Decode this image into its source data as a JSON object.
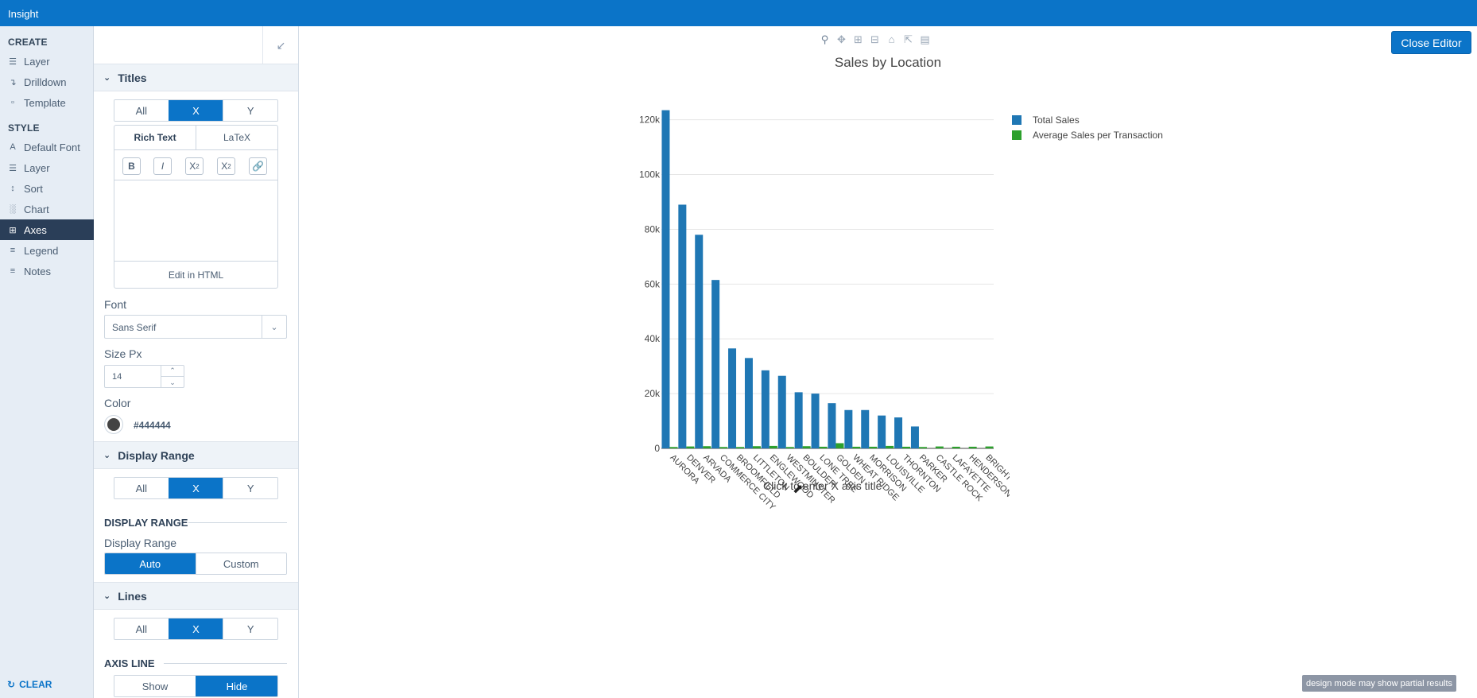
{
  "app": {
    "title": "Insight"
  },
  "sidebar": {
    "create_heading": "CREATE",
    "create_items": [
      {
        "label": "Layer",
        "icon": "layers-icon"
      },
      {
        "label": "Drilldown",
        "icon": "drilldown-icon"
      },
      {
        "label": "Template",
        "icon": "template-icon"
      }
    ],
    "style_heading": "STYLE",
    "style_items": [
      {
        "label": "Default Font",
        "icon": "font-icon"
      },
      {
        "label": "Layer",
        "icon": "layers-icon"
      },
      {
        "label": "Sort",
        "icon": "sort-icon"
      },
      {
        "label": "Chart",
        "icon": "chart-icon"
      },
      {
        "label": "Axes",
        "icon": "axes-icon",
        "active": true
      },
      {
        "label": "Legend",
        "icon": "legend-icon"
      },
      {
        "label": "Notes",
        "icon": "notes-icon"
      }
    ],
    "clear_label": "CLEAR"
  },
  "panel": {
    "titles": {
      "heading": "Titles",
      "axis_options": [
        "All",
        "X",
        "Y"
      ],
      "axis_selected": "X",
      "editor_tabs": [
        "Rich Text",
        "LaTeX"
      ],
      "editor_tab_selected": "Rich Text",
      "tools": {
        "bold": "B",
        "italic": "I",
        "subscript": "X",
        "sub_mark": "2",
        "superscript": "X",
        "sup_mark": "2"
      },
      "edit_html": "Edit in HTML",
      "font_label": "Font",
      "font_value": "Sans Serif",
      "size_label": "Size Px",
      "size_value": "14",
      "color_label": "Color",
      "color_value": "#444444"
    },
    "display_range": {
      "heading": "Display Range",
      "axis_options": [
        "All",
        "X",
        "Y"
      ],
      "axis_selected": "X",
      "subheading": "DISPLAY RANGE",
      "label": "Display Range",
      "options": [
        "Auto",
        "Custom"
      ],
      "selected": "Auto"
    },
    "lines": {
      "heading": "Lines",
      "axis_options": [
        "All",
        "X",
        "Y"
      ],
      "axis_selected": "X",
      "subheading": "AXIS LINE",
      "options": [
        "Show",
        "Hide"
      ],
      "selected": "Hide"
    }
  },
  "main": {
    "close_editor": "Close Editor",
    "x_axis_placeholder": "Click to enter X axis title",
    "partial_notice": "design mode may show partial results",
    "toolbar_icons": [
      "zoom-icon",
      "pan-icon",
      "zoom-in-icon",
      "zoom-out-icon",
      "home-icon",
      "autoscale-icon",
      "save-icon"
    ]
  },
  "colors": {
    "brand": "#0b74c8",
    "series_total": "#1f77b4",
    "series_avg": "#2ca02c",
    "active_nav": "#2a3e58"
  },
  "chart_data": {
    "type": "bar",
    "title": "Sales by Location",
    "xlabel": "",
    "ylabel": "",
    "ylim": [
      0,
      126000
    ],
    "y_ticks": [
      "0",
      "20k",
      "40k",
      "60k",
      "80k",
      "100k",
      "120k"
    ],
    "y_tick_values": [
      0,
      20000,
      40000,
      60000,
      80000,
      100000,
      120000
    ],
    "grid": true,
    "legend_position": "top-right",
    "categories": [
      "AURORA",
      "DENVER",
      "ARVADA",
      "COMMERCE CITY",
      "BROOMFIELD",
      "LITTLETON",
      "ENGLEWOOD",
      "WESTMINSTER",
      "BOULDER",
      "LONE TREE",
      "GOLDEN",
      "WHEAT RIDGE",
      "MORRISON",
      "LOUISVILLE",
      "THORNTON",
      "PARKER",
      "CASTLE ROCK",
      "LAFAYETTE",
      "HENDERSON",
      "BRIGHTON"
    ],
    "series": [
      {
        "name": "Total Sales",
        "color": "#1f77b4",
        "values": [
          123500,
          89000,
          78000,
          61500,
          36500,
          33000,
          28500,
          26500,
          20500,
          20000,
          16500,
          14000,
          14000,
          12000,
          11300,
          8000,
          0,
          0,
          0,
          0
        ]
      },
      {
        "name": "Average Sales per Transaction",
        "color": "#2ca02c",
        "values": [
          500,
          700,
          800,
          500,
          500,
          800,
          900,
          500,
          800,
          600,
          1900,
          600,
          600,
          900,
          600,
          500,
          700,
          600,
          600,
          700
        ]
      }
    ]
  }
}
